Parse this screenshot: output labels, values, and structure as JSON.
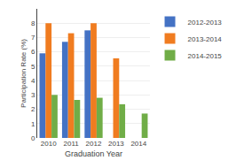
{
  "chart_data": {
    "type": "bar",
    "xlabel": "Graduation Year",
    "ylabel": "Participation Rate (%)",
    "categories": [
      2010,
      2011,
      2012,
      2013,
      2014
    ],
    "series": [
      {
        "name": "2012-2013",
        "color": "#4472C4",
        "values": [
          5.9,
          6.7,
          7.5,
          0.0,
          0.0
        ]
      },
      {
        "name": "2013-2014",
        "color": "#F07C20",
        "values": [
          8.0,
          7.3,
          8.0,
          5.55,
          0.0
        ]
      },
      {
        "name": "2014-2015",
        "color": "#70AD47",
        "values": [
          3.0,
          2.65,
          2.8,
          2.35,
          1.7
        ]
      }
    ],
    "ylim": [
      0,
      9
    ],
    "yticks": [
      0,
      1,
      2,
      3,
      4,
      5,
      6,
      7,
      8
    ],
    "grid": true,
    "legend": "upper right"
  }
}
